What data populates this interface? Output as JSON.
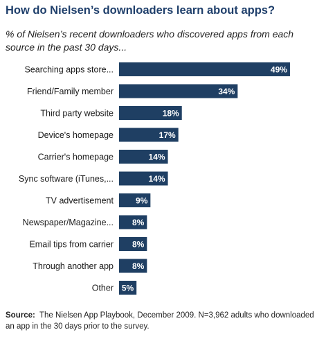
{
  "title": "How do Nielsen’s downloaders learn about apps?",
  "subtitle": "% of Nielsen’s recent downloaders who discovered apps from each source in the past 30 days...",
  "source_label": "Source:",
  "source_text": "The Nielsen App Playbook, December 2009. N=3,962 adults who downloaded an app in the 30 days prior to the survey.",
  "colors": {
    "bar": "#1f3f63",
    "bar_label": "#ffffff",
    "title": "#1f3f6b"
  },
  "chart_data": {
    "type": "bar",
    "orientation": "horizontal",
    "categories": [
      "Searching apps store...",
      "Friend/Family member",
      "Third party website",
      "Device's homepage",
      "Carrier's homepage",
      "Sync software (iTunes,...",
      "TV advertisement",
      "Newspaper/Magazine...",
      "Email tips from carrier",
      "Through another app",
      "Other"
    ],
    "values": [
      49,
      34,
      18,
      17,
      14,
      14,
      9,
      8,
      8,
      8,
      5
    ],
    "value_labels": [
      "49%",
      "34%",
      "18%",
      "17%",
      "14%",
      "14%",
      "9%",
      "8%",
      "8%",
      "8%",
      "5%"
    ],
    "unit": "%",
    "xlim": [
      0,
      50
    ],
    "grid": false,
    "legend": "none"
  }
}
